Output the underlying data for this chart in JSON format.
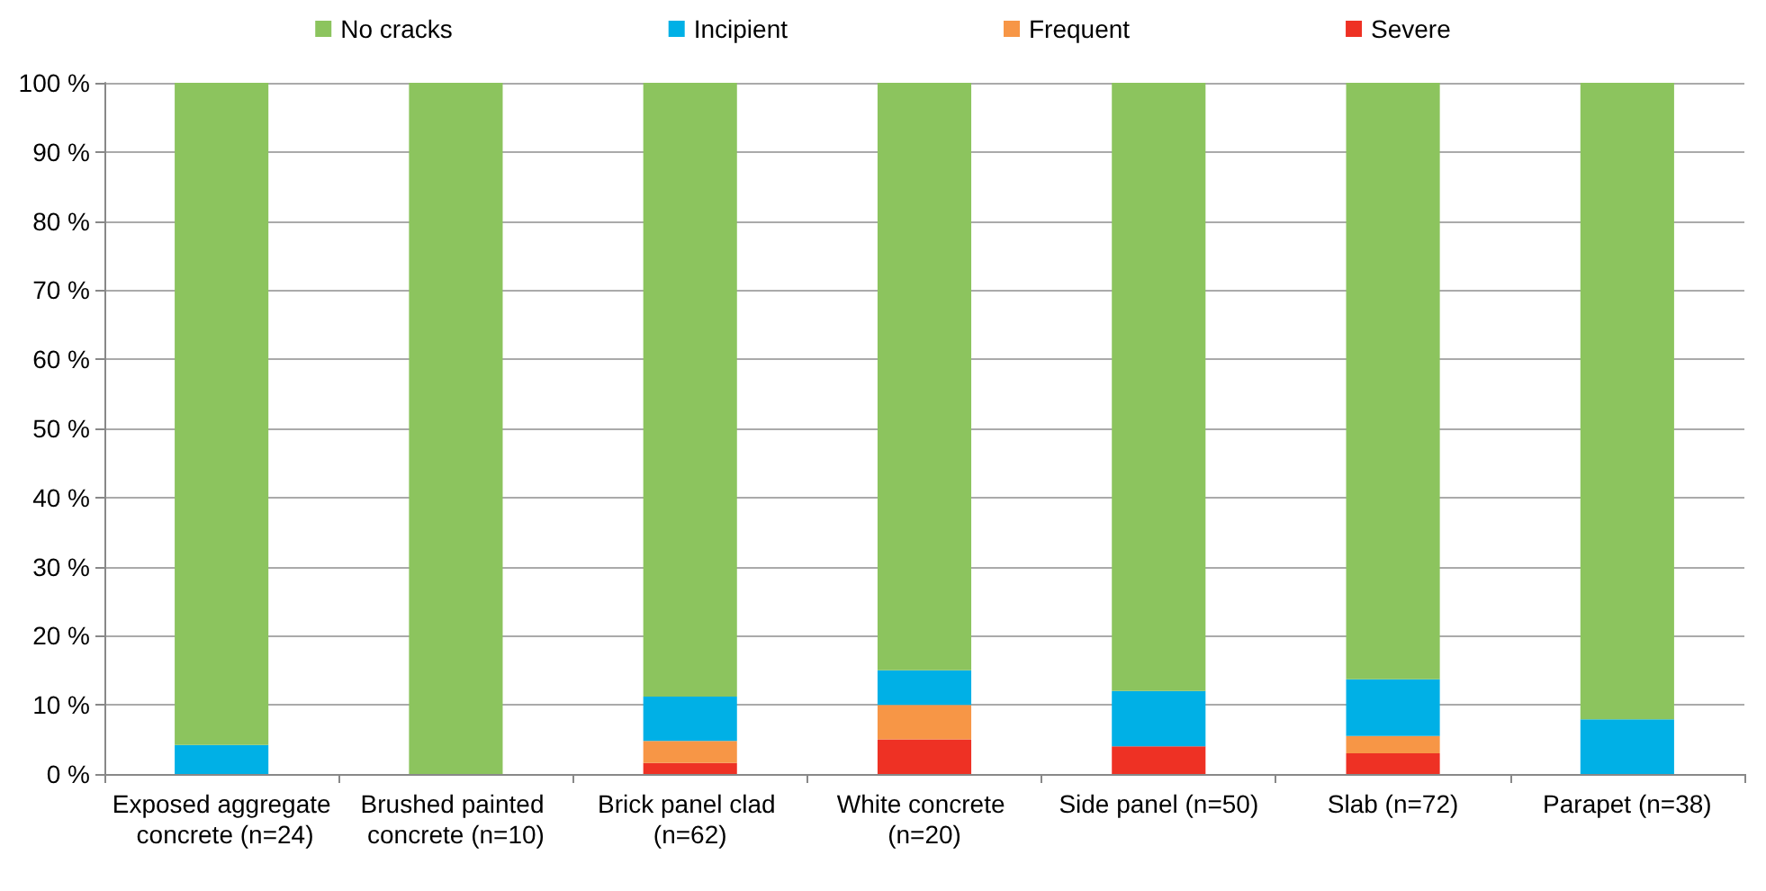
{
  "chart_data": {
    "type": "bar",
    "stacked": true,
    "categories": [
      "Exposed aggregate concrete (n=24)",
      "Brushed painted concrete (n=10)",
      "Brick panel clad (n=62)",
      "White concrete (n=20)",
      "Side panel (n=50)",
      "Slab (n=72)",
      "Parapet (n=38)"
    ],
    "series": [
      {
        "name": "Severe",
        "color": "#ee3124",
        "values": [
          0,
          0,
          1.6,
          5,
          4,
          3,
          0
        ]
      },
      {
        "name": "Frequent",
        "color": "#f79646",
        "values": [
          0,
          0,
          3.2,
          5,
          0,
          2.5,
          0
        ]
      },
      {
        "name": "Incipient",
        "color": "#00b0e6",
        "values": [
          4.2,
          0,
          6.4,
          5,
          8,
          8.2,
          7.9
        ]
      },
      {
        "name": "No cracks",
        "color": "#8cc45e",
        "values": [
          95.8,
          100,
          88.8,
          85,
          88,
          86.3,
          92.1
        ]
      }
    ],
    "ylim": [
      0,
      100
    ],
    "yticks": [
      {
        "value": 0,
        "label": "0 %"
      },
      {
        "value": 10,
        "label": "10 %"
      },
      {
        "value": 20,
        "label": "20 %"
      },
      {
        "value": 30,
        "label": "30 %"
      },
      {
        "value": 40,
        "label": "40 %"
      },
      {
        "value": 50,
        "label": "50 %"
      },
      {
        "value": 60,
        "label": "60 %"
      },
      {
        "value": 70,
        "label": "70 %"
      },
      {
        "value": 80,
        "label": "80 %"
      },
      {
        "value": 90,
        "label": "90 %"
      },
      {
        "value": 100,
        "label": "100 %"
      }
    ],
    "grid": "y",
    "legend": "top"
  }
}
